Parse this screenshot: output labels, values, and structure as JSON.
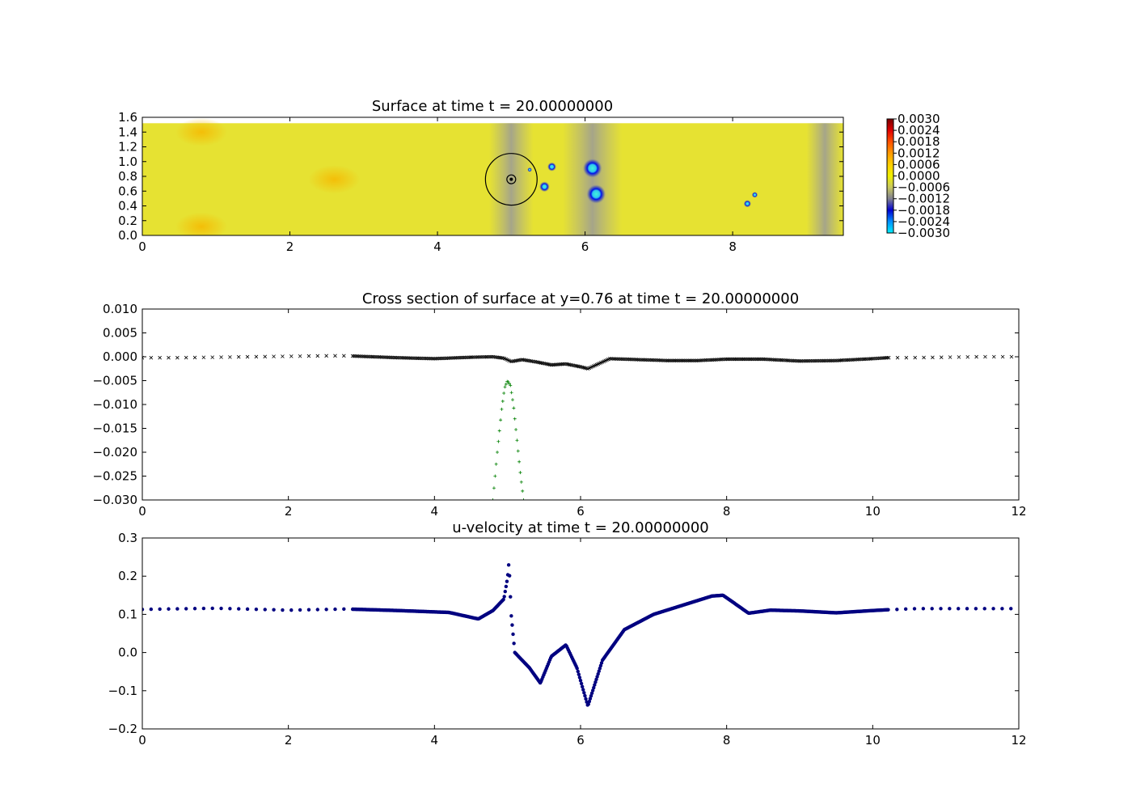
{
  "colors": {
    "surface_fill": "#e6e232",
    "surface_hot": "#f5b400",
    "surface_gray": "#a8a890",
    "trough_blue": "#0010e0",
    "trough_cyan": "#3cf0d0",
    "cross_main": "#000000",
    "cross_green": "#008000",
    "velocity_dots": "#000080",
    "axes": "#000000"
  },
  "colorbar": {
    "labels": [
      "0.0030",
      "0.0024",
      "0.0018",
      "0.0012",
      "0.0006",
      "0.0000",
      "−0.0006",
      "−0.0012",
      "−0.0018",
      "−0.0024",
      "−0.0030"
    ],
    "stops": [
      "#7a0000",
      "#e00000",
      "#ff5000",
      "#ff9a00",
      "#ffd000",
      "#f0f000",
      "#c8c860",
      "#808090",
      "#0000d0",
      "#0090ff",
      "#00f0ff"
    ]
  },
  "chart_data": [
    {
      "type": "heatmap",
      "title": "Surface at time t =    20.00000000",
      "xlim": [
        0,
        9.5
      ],
      "ylim": [
        0,
        1.6
      ],
      "xticks": [
        0,
        2,
        4,
        6,
        8
      ],
      "xtick_labels": [
        "0",
        "2",
        "4",
        "6",
        "8"
      ],
      "yticks": [
        0.0,
        0.2,
        0.4,
        0.6,
        0.8,
        1.0,
        1.2,
        1.4,
        1.6
      ],
      "ytick_labels": [
        "0.0",
        "0.2",
        "0.4",
        "0.6",
        "0.8",
        "1.0",
        "1.2",
        "1.4",
        "1.6"
      ],
      "domain_top": 1.52,
      "domain_right": 9.5,
      "gray_bands": [
        [
          4.7,
          5.3
        ],
        [
          5.7,
          6.5
        ],
        [
          9.0,
          9.5
        ]
      ],
      "warm_spots": [
        {
          "x": 0.8,
          "y": 1.4,
          "r": 0.35
        },
        {
          "x": 0.8,
          "y": 0.12,
          "r": 0.35
        },
        {
          "x": 2.6,
          "y": 0.76,
          "r": 0.35
        }
      ],
      "troughs": [
        {
          "x": 6.1,
          "y": 0.91,
          "r": 0.13
        },
        {
          "x": 6.15,
          "y": 0.56,
          "r": 0.13
        },
        {
          "x": 5.45,
          "y": 0.66,
          "r": 0.07
        },
        {
          "x": 5.55,
          "y": 0.93,
          "r": 0.06
        },
        {
          "x": 8.2,
          "y": 0.43,
          "r": 0.05
        },
        {
          "x": 8.3,
          "y": 0.55,
          "r": 0.04
        },
        {
          "x": 5.25,
          "y": 0.89,
          "r": 0.03
        }
      ],
      "circles": [
        {
          "x": 5.0,
          "y": 0.76,
          "r": 0.35
        },
        {
          "x": 5.0,
          "y": 0.76,
          "r": 0.06
        }
      ],
      "colorbar_range": [
        -0.003,
        0.003
      ]
    },
    {
      "type": "scatter",
      "title": "Cross section of surface at y=0.76 at time t =    20.00000000",
      "xlim": [
        0,
        12
      ],
      "ylim": [
        -0.03,
        0.01
      ],
      "xticks": [
        0,
        2,
        4,
        6,
        8,
        10,
        12
      ],
      "xtick_labels": [
        "0",
        "2",
        "4",
        "6",
        "8",
        "10",
        "12"
      ],
      "yticks": [
        0.01,
        0.005,
        0.0,
        -0.005,
        -0.01,
        -0.015,
        -0.02,
        -0.025,
        -0.03
      ],
      "ytick_labels": [
        "0.010",
        "0.005",
        "0.000",
        "−0.005",
        "−0.010",
        "−0.015",
        "−0.020",
        "−0.025",
        "−0.030"
      ],
      "series": [
        {
          "marker": "x",
          "color": "#000000",
          "x": [
            0.0,
            0.5,
            1.0,
            1.5,
            2.0,
            2.5,
            2.8,
            3.5,
            4.0,
            4.5,
            4.8,
            4.95,
            5.05,
            5.2,
            5.4,
            5.6,
            5.8,
            6.0,
            6.1,
            6.2,
            6.4,
            6.8,
            7.2,
            7.6,
            8.0,
            8.5,
            9.0,
            9.5,
            10.0,
            10.2,
            10.5,
            11.0,
            11.5,
            12.0
          ],
          "y": [
            -0.0002,
            -0.0002,
            -0.0001,
            0.0,
            0.0001,
            0.0002,
            0.0002,
            -0.0002,
            -0.0004,
            -0.0001,
            0.0,
            -0.0003,
            -0.001,
            -0.0006,
            -0.0011,
            -0.0017,
            -0.0015,
            -0.0021,
            -0.0025,
            -0.0018,
            -0.0004,
            -0.0006,
            -0.0008,
            -0.0008,
            -0.0005,
            -0.0005,
            -0.0009,
            -0.0008,
            -0.0004,
            -0.0002,
            -0.0002,
            -0.0001,
            0.0,
            0.0
          ]
        },
        {
          "marker": "+",
          "color": "#008000",
          "x": [
            4.8,
            4.86,
            4.92,
            4.96,
            5.0,
            5.04,
            5.08,
            5.12,
            5.18,
            5.22
          ],
          "y": [
            -0.03,
            -0.02,
            -0.011,
            -0.0065,
            -0.005,
            -0.006,
            -0.01,
            -0.016,
            -0.025,
            -0.03
          ]
        }
      ]
    },
    {
      "type": "scatter",
      "title": "u-velocity at time t =    20.00000000",
      "xlim": [
        0,
        12
      ],
      "ylim": [
        -0.2,
        0.3
      ],
      "xticks": [
        0,
        2,
        4,
        6,
        8,
        10,
        12
      ],
      "xtick_labels": [
        "0",
        "2",
        "4",
        "6",
        "8",
        "10",
        "12"
      ],
      "yticks": [
        0.3,
        0.2,
        0.1,
        0.0,
        -0.1,
        -0.2
      ],
      "ytick_labels": [
        "0.3",
        "0.2",
        "0.1",
        "0.0",
        "−0.1",
        "−0.2"
      ],
      "series": [
        {
          "marker": "o",
          "color": "#000080",
          "x": [
            0.0,
            1.0,
            2.0,
            2.8,
            3.5,
            4.2,
            4.6,
            4.8,
            4.95,
            5.0,
            5.02,
            5.05,
            5.1,
            5.3,
            5.45,
            5.6,
            5.8,
            5.95,
            6.1,
            6.3,
            6.6,
            7.0,
            7.5,
            7.8,
            7.95,
            8.1,
            8.3,
            8.6,
            9.0,
            9.5,
            10.0,
            10.2,
            10.6,
            11.2,
            12.0
          ],
          "y": [
            0.113,
            0.116,
            0.111,
            0.114,
            0.11,
            0.105,
            0.088,
            0.11,
            0.14,
            0.195,
            0.238,
            0.1,
            0.0,
            -0.04,
            -0.08,
            -0.01,
            0.02,
            -0.04,
            -0.14,
            -0.02,
            0.06,
            0.1,
            0.13,
            0.148,
            0.15,
            0.13,
            0.103,
            0.111,
            0.109,
            0.104,
            0.11,
            0.112,
            0.115,
            0.115,
            0.115
          ]
        }
      ]
    }
  ]
}
